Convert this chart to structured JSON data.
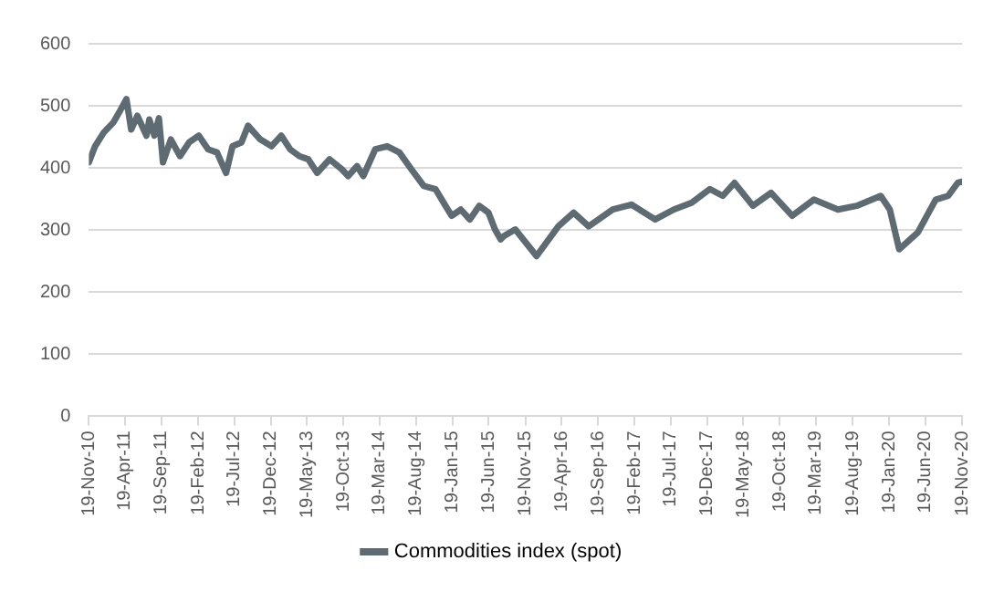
{
  "chart_data": {
    "type": "line",
    "x": [
      "2010-11-19",
      "2010-12-15",
      "2011-01-20",
      "2011-03-01",
      "2011-03-25",
      "2011-04-25",
      "2011-05-15",
      "2011-06-10",
      "2011-07-18",
      "2011-07-30",
      "2011-08-20",
      "2011-09-08",
      "2011-09-25",
      "2011-10-28",
      "2011-12-05",
      "2012-01-12",
      "2012-02-22",
      "2012-04-01",
      "2012-05-08",
      "2012-06-15",
      "2012-07-12",
      "2012-08-18",
      "2012-09-15",
      "2012-11-05",
      "2012-12-22",
      "2013-02-01",
      "2013-03-10",
      "2013-04-18",
      "2013-05-25",
      "2013-07-01",
      "2013-08-22",
      "2013-10-12",
      "2013-11-08",
      "2013-12-15",
      "2014-01-10",
      "2014-03-01",
      "2014-04-20",
      "2014-06-10",
      "2014-07-30",
      "2014-09-20",
      "2014-11-08",
      "2014-12-20",
      "2015-01-15",
      "2015-02-22",
      "2015-04-01",
      "2015-05-10",
      "2015-06-18",
      "2015-07-15",
      "2015-08-08",
      "2015-08-20",
      "2015-10-08",
      "2016-01-05",
      "2016-04-05",
      "2016-06-08",
      "2016-08-10",
      "2016-11-19",
      "2017-02-05",
      "2017-05-15",
      "2017-08-01",
      "2017-10-15",
      "2017-12-30",
      "2018-02-22",
      "2018-04-12",
      "2018-06-28",
      "2018-09-12",
      "2018-12-10",
      "2019-03-10",
      "2019-06-19",
      "2019-09-05",
      "2019-12-15",
      "2020-01-22",
      "2020-03-01",
      "2020-05-18",
      "2020-08-01",
      "2020-09-22",
      "2020-11-01",
      "2020-11-19"
    ],
    "series": [
      {
        "name": "Commodities index (spot)",
        "color": "#5f6b73",
        "values": [
          409,
          435,
          457,
          473,
          489,
          511,
          462,
          484,
          452,
          478,
          452,
          480,
          409,
          446,
          419,
          441,
          452,
          430,
          425,
          392,
          435,
          441,
          468,
          446,
          435,
          452,
          430,
          419,
          414,
          392,
          414,
          398,
          387,
          403,
          387,
          430,
          435,
          425,
          398,
          371,
          366,
          339,
          323,
          333,
          317,
          339,
          328,
          301,
          285,
          290,
          301,
          258,
          306,
          328,
          306,
          333,
          341,
          317,
          333,
          344,
          366,
          355,
          376,
          339,
          360,
          323,
          349,
          333,
          339,
          355,
          333,
          269,
          296,
          349,
          355,
          376,
          378
        ]
      }
    ],
    "xlim": [
      "2010-11-19",
      "2020-11-19"
    ],
    "xticks": [
      {
        "value": "2010-11-19",
        "label": "19-Nov-10"
      },
      {
        "value": "2011-04-19",
        "label": "19-Apr-11"
      },
      {
        "value": "2011-09-19",
        "label": "19-Sep-11"
      },
      {
        "value": "2012-02-19",
        "label": "19-Feb-12"
      },
      {
        "value": "2012-07-19",
        "label": "19-Jul-12"
      },
      {
        "value": "2012-12-19",
        "label": "19-Dec-12"
      },
      {
        "value": "2013-05-19",
        "label": "19-May-13"
      },
      {
        "value": "2013-10-19",
        "label": "19-Oct-13"
      },
      {
        "value": "2014-03-19",
        "label": "19-Mar-14"
      },
      {
        "value": "2014-08-19",
        "label": "19-Aug-14"
      },
      {
        "value": "2015-01-19",
        "label": "19-Jan-15"
      },
      {
        "value": "2015-06-19",
        "label": "19-Jun-15"
      },
      {
        "value": "2015-11-19",
        "label": "19-Nov-15"
      },
      {
        "value": "2016-04-19",
        "label": "19-Apr-16"
      },
      {
        "value": "2016-09-19",
        "label": "19-Sep-16"
      },
      {
        "value": "2017-02-19",
        "label": "19-Feb-17"
      },
      {
        "value": "2017-07-19",
        "label": "19-Jul-17"
      },
      {
        "value": "2017-12-19",
        "label": "19-Dec-17"
      },
      {
        "value": "2018-05-19",
        "label": "19-May-18"
      },
      {
        "value": "2018-10-19",
        "label": "19-Oct-18"
      },
      {
        "value": "2019-03-19",
        "label": "19-Mar-19"
      },
      {
        "value": "2019-08-19",
        "label": "19-Aug-19"
      },
      {
        "value": "2020-01-19",
        "label": "19-Jan-20"
      },
      {
        "value": "2020-06-19",
        "label": "19-Jun-20"
      },
      {
        "value": "2020-11-19",
        "label": "19-Nov-20"
      }
    ],
    "ylim": [
      0,
      600
    ],
    "yticks": [
      0,
      100,
      200,
      300,
      400,
      500,
      600
    ],
    "grid": "y",
    "legend": "bottom",
    "marker": "none",
    "line_style": "solid"
  }
}
